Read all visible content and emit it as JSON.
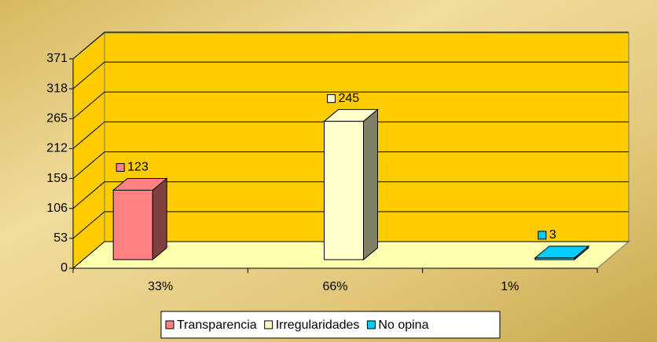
{
  "chart_data": {
    "type": "bar",
    "categories": [
      "33%",
      "66%",
      "1%"
    ],
    "series": [
      {
        "name": "Transparencia",
        "color": "#ff8080",
        "values": [
          123,
          null,
          null
        ]
      },
      {
        "name": "Irregularidades",
        "color": "#ffffcc",
        "values": [
          null,
          245,
          null
        ]
      },
      {
        "name": "No opina",
        "color": "#00ccff",
        "values": [
          null,
          null,
          3
        ]
      }
    ],
    "ylim": [
      0,
      371
    ],
    "yticks": [
      0,
      53,
      106,
      159,
      212,
      265,
      318,
      371
    ],
    "grid": true,
    "legend": "bottom"
  }
}
